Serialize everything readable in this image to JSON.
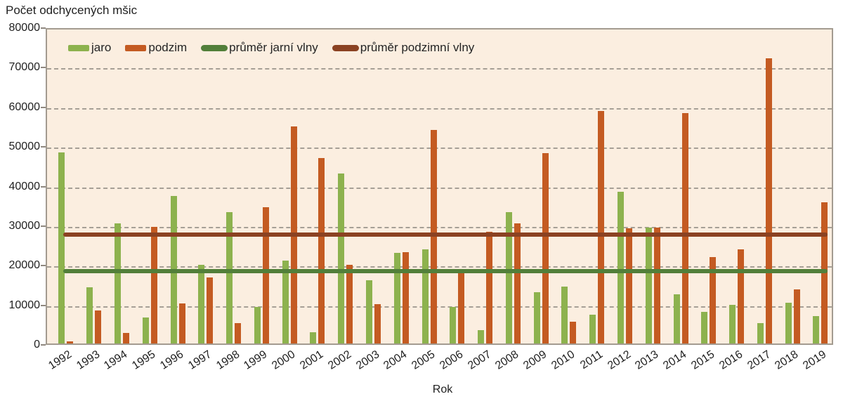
{
  "title": "Počet odchycených mšic",
  "x_axis": {
    "label": "Rok"
  },
  "legend": {
    "items": [
      {
        "label": "jaro",
        "swatch": "bar",
        "color": "#8db24e"
      },
      {
        "label": "podzim",
        "swatch": "bar",
        "color": "#c45b22"
      },
      {
        "label": "průměr jarní vlny",
        "swatch": "line",
        "color": "#527f3a"
      },
      {
        "label": "průměr podzimní vlny",
        "swatch": "line",
        "color": "#8b4222"
      }
    ]
  },
  "colors": {
    "plot_bg": "#fbeee0",
    "grid": "#98928a",
    "axis_border": "#a39b90",
    "text": "#1f1f1f",
    "jaro": "#8db24e",
    "podzim": "#c45b22",
    "avg_jaro": "#527f3a",
    "avg_podzim": "#8b4222"
  },
  "chart_data": {
    "type": "bar",
    "title": "Počet odchycených mšic",
    "xlabel": "Rok",
    "ylabel": "Počet odchycených mšic",
    "ylim": [
      0,
      80000
    ],
    "y_ticks": [
      0,
      10000,
      20000,
      30000,
      40000,
      50000,
      60000,
      70000,
      80000
    ],
    "grid": "horizontal dashed",
    "legend_position": "top-left inside plot",
    "categories": [
      "1992",
      "1993",
      "1994",
      "1995",
      "1996",
      "1997",
      "1998",
      "1999",
      "2000",
      "2001",
      "2002",
      "2003",
      "2004",
      "2005",
      "2006",
      "2007",
      "2008",
      "2009",
      "2010",
      "2011",
      "2012",
      "2013",
      "2014",
      "2015",
      "2016",
      "2017",
      "2018",
      "2019"
    ],
    "series": [
      {
        "name": "jaro",
        "color": "#8db24e",
        "values": [
          48300,
          14200,
          30300,
          6600,
          37200,
          19900,
          33100,
          9300,
          21000,
          2800,
          43000,
          15900,
          22800,
          23700,
          9300,
          3400,
          33200,
          13000,
          14300,
          7200,
          38400,
          29200,
          12400,
          8000,
          9700,
          5100,
          10300,
          6900
        ]
      },
      {
        "name": "podzim",
        "color": "#c45b22",
        "values": [
          500,
          8400,
          2700,
          29400,
          10200,
          16700,
          5100,
          34500,
          54900,
          46900,
          19800,
          10000,
          23100,
          53900,
          18700,
          28200,
          30300,
          48000,
          5500,
          58800,
          29100,
          29200,
          58200,
          21900,
          23700,
          72000,
          13700,
          35700
        ]
      }
    ],
    "reference_lines": [
      {
        "name": "průměr jarní vlny",
        "value": 18900,
        "color": "#527f3a"
      },
      {
        "name": "průměr podzimní vlny",
        "value": 28200,
        "color": "#8b4222"
      }
    ]
  }
}
